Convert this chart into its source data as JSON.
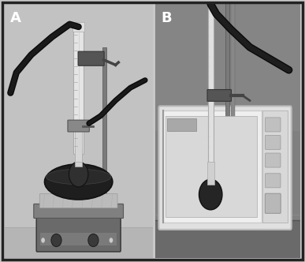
{
  "label_A": "A",
  "label_B": "B",
  "label_fontsize": 13,
  "label_fontweight": "bold",
  "fig_bg": "#c8c8c8",
  "border_color": "#222222",
  "panel_A_bg": "#c0c0c0",
  "panel_A_floor": "#b0b0b0",
  "panel_B_bg": "#888888",
  "panel_B_wall": "#909090",
  "hotplate_color": "#707070",
  "hotplate_top": "#888888",
  "foil_color": "#b8b8b8",
  "bath_color": "#1a1a1a",
  "flask_color": "#2a2a2a",
  "tube_color": "#e0e0e0",
  "tube_edge": "#999999",
  "hose_color": "#111111",
  "stand_color": "#888888",
  "clamp_color": "#555555",
  "mw_body": "#e8e8e8",
  "mw_interior": "#d0d0d0",
  "mw_panel": "#dddddd"
}
